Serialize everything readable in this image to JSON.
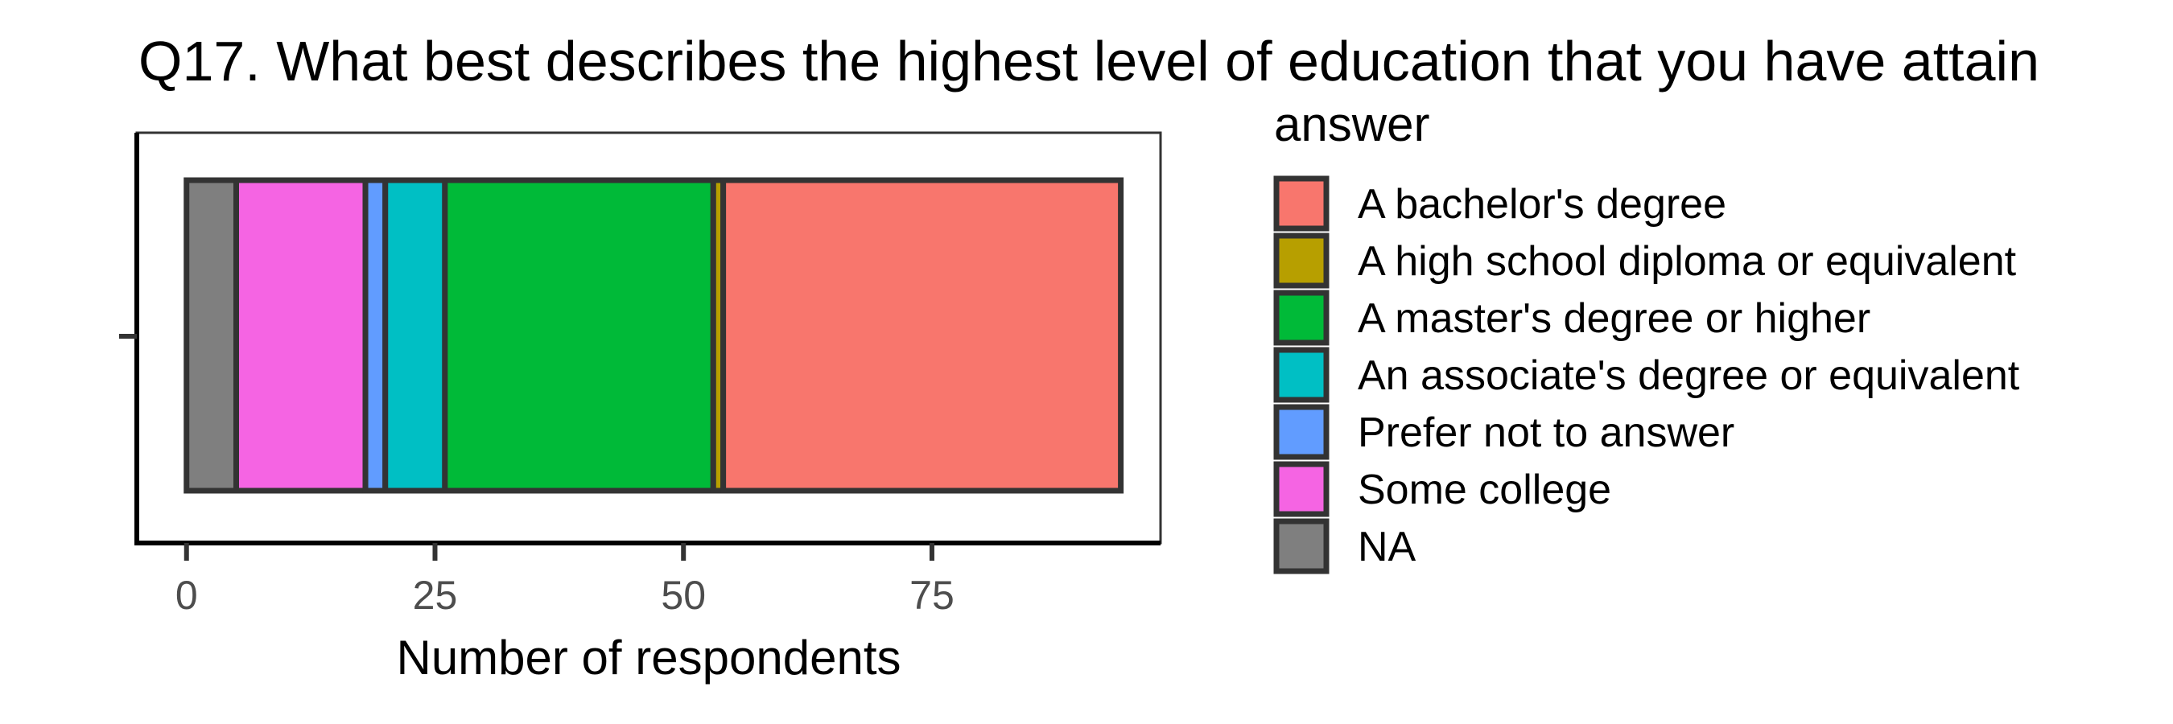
{
  "chart_data": {
    "type": "bar",
    "orientation": "horizontal",
    "stacked": true,
    "title": "Q17. What best describes the highest level of education that you have attain",
    "xlabel": "Number of respondents",
    "ylabel": "",
    "xlim": [
      -5,
      98
    ],
    "x_ticks": [
      0,
      25,
      50,
      75
    ],
    "legend_title": "answer",
    "legend_position": "right",
    "grid": false,
    "series": [
      {
        "name": "A bachelor's degree",
        "value": 40,
        "color": "#F8766D"
      },
      {
        "name": "A high school diploma or equivalent",
        "value": 1,
        "color": "#B79F00"
      },
      {
        "name": "A master's degree or higher",
        "value": 27,
        "color": "#00BA38"
      },
      {
        "name": "An associate's degree or equivalent",
        "value": 6,
        "color": "#00BFC4"
      },
      {
        "name": "Prefer not to answer",
        "value": 2,
        "color": "#619CFF"
      },
      {
        "name": "Some college",
        "value": 13,
        "color": "#F564E3"
      },
      {
        "name": "NA",
        "value": 5,
        "color": "#7F7F7F"
      }
    ],
    "stack_order_left_to_right": [
      "NA",
      "Some college",
      "Prefer not to answer",
      "An associate's degree or equivalent",
      "A master's degree or higher",
      "A high school diploma or equivalent",
      "A bachelor's degree"
    ]
  }
}
